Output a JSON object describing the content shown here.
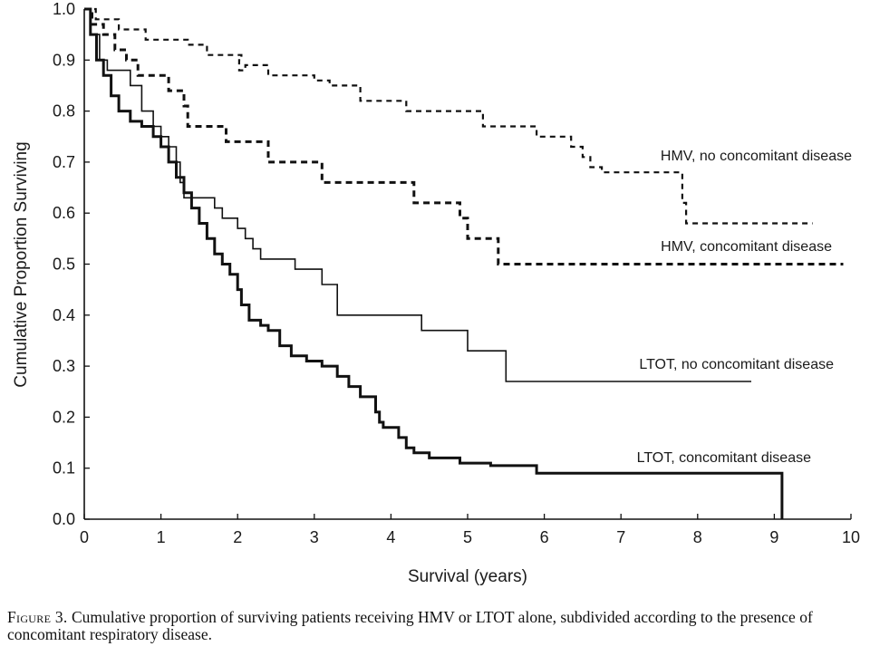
{
  "chart_data": {
    "type": "line",
    "step": true,
    "xlabel": "Survival (years)",
    "ylabel": "Cumulative Proportion Surviving",
    "xlim": [
      0,
      10
    ],
    "ylim": [
      0,
      1.0
    ],
    "x_ticks": [
      "0",
      "1",
      "2",
      "3",
      "4",
      "5",
      "6",
      "7",
      "8",
      "9",
      "10"
    ],
    "y_ticks": [
      "0.0",
      "0.1",
      "0.2",
      "0.3",
      "0.4",
      "0.5",
      "0.6",
      "0.7",
      "0.8",
      "0.9",
      "1.0"
    ],
    "grid": false,
    "series": [
      {
        "name": "HMV, no concomitant disease",
        "style": "dashed-thin",
        "points": [
          [
            0,
            1.0
          ],
          [
            0.15,
            0.98
          ],
          [
            0.45,
            0.96
          ],
          [
            0.8,
            0.94
          ],
          [
            1.35,
            0.93
          ],
          [
            1.6,
            0.91
          ],
          [
            2.0,
            0.91
          ],
          [
            2.05,
            0.9
          ],
          [
            2.02,
            0.88
          ],
          [
            2.1,
            0.89
          ],
          [
            2.4,
            0.87
          ],
          [
            3.0,
            0.86
          ],
          [
            3.2,
            0.85
          ],
          [
            3.6,
            0.82
          ],
          [
            4.1,
            0.82
          ],
          [
            4.2,
            0.8
          ],
          [
            5.0,
            0.8
          ],
          [
            5.2,
            0.77
          ],
          [
            5.7,
            0.77
          ],
          [
            5.9,
            0.75
          ],
          [
            6.2,
            0.75
          ],
          [
            6.35,
            0.73
          ],
          [
            6.5,
            0.71
          ],
          [
            6.6,
            0.69
          ],
          [
            6.75,
            0.68
          ],
          [
            7.8,
            0.68
          ],
          [
            7.8,
            0.62
          ],
          [
            7.85,
            0.58
          ],
          [
            9.5,
            0.58
          ]
        ]
      },
      {
        "name": "HMV, concomitant disease",
        "style": "dashed-thick",
        "points": [
          [
            0,
            1.0
          ],
          [
            0.1,
            0.97
          ],
          [
            0.25,
            0.95
          ],
          [
            0.4,
            0.92
          ],
          [
            0.55,
            0.9
          ],
          [
            0.7,
            0.87
          ],
          [
            0.9,
            0.87
          ],
          [
            1.1,
            0.84
          ],
          [
            1.3,
            0.81
          ],
          [
            1.35,
            0.77
          ],
          [
            1.6,
            0.77
          ],
          [
            1.85,
            0.74
          ],
          [
            2.4,
            0.7
          ],
          [
            2.9,
            0.7
          ],
          [
            3.1,
            0.66
          ],
          [
            4.0,
            0.66
          ],
          [
            4.3,
            0.62
          ],
          [
            4.8,
            0.62
          ],
          [
            4.9,
            0.59
          ],
          [
            5.0,
            0.55
          ],
          [
            5.3,
            0.55
          ],
          [
            5.4,
            0.5
          ],
          [
            9.9,
            0.5
          ]
        ]
      },
      {
        "name": "LTOT, no concomitant disease",
        "style": "solid-thin",
        "points": [
          [
            0,
            1.0
          ],
          [
            0.08,
            0.95
          ],
          [
            0.2,
            0.9
          ],
          [
            0.3,
            0.88
          ],
          [
            0.5,
            0.88
          ],
          [
            0.6,
            0.85
          ],
          [
            0.75,
            0.8
          ],
          [
            0.9,
            0.77
          ],
          [
            1.0,
            0.75
          ],
          [
            1.1,
            0.73
          ],
          [
            1.2,
            0.7
          ],
          [
            1.25,
            0.66
          ],
          [
            1.3,
            0.63
          ],
          [
            1.6,
            0.63
          ],
          [
            1.7,
            0.61
          ],
          [
            1.8,
            0.59
          ],
          [
            2.0,
            0.57
          ],
          [
            2.1,
            0.55
          ],
          [
            2.2,
            0.53
          ],
          [
            2.3,
            0.51
          ],
          [
            2.6,
            0.51
          ],
          [
            2.75,
            0.49
          ],
          [
            3.0,
            0.49
          ],
          [
            3.1,
            0.46
          ],
          [
            3.25,
            0.46
          ],
          [
            3.3,
            0.4
          ],
          [
            4.3,
            0.4
          ],
          [
            4.4,
            0.37
          ],
          [
            4.95,
            0.37
          ],
          [
            5.0,
            0.33
          ],
          [
            5.45,
            0.33
          ],
          [
            5.5,
            0.27
          ],
          [
            8.7,
            0.27
          ]
        ]
      },
      {
        "name": "LTOT, concomitant disease",
        "style": "solid-thick",
        "points": [
          [
            0,
            1.0
          ],
          [
            0.08,
            0.95
          ],
          [
            0.16,
            0.9
          ],
          [
            0.25,
            0.87
          ],
          [
            0.35,
            0.83
          ],
          [
            0.45,
            0.8
          ],
          [
            0.6,
            0.78
          ],
          [
            0.75,
            0.77
          ],
          [
            0.9,
            0.75
          ],
          [
            1.0,
            0.73
          ],
          [
            1.1,
            0.7
          ],
          [
            1.2,
            0.67
          ],
          [
            1.3,
            0.64
          ],
          [
            1.4,
            0.61
          ],
          [
            1.5,
            0.58
          ],
          [
            1.6,
            0.55
          ],
          [
            1.7,
            0.52
          ],
          [
            1.8,
            0.5
          ],
          [
            1.9,
            0.48
          ],
          [
            2.0,
            0.45
          ],
          [
            2.05,
            0.42
          ],
          [
            2.15,
            0.39
          ],
          [
            2.3,
            0.38
          ],
          [
            2.4,
            0.37
          ],
          [
            2.55,
            0.34
          ],
          [
            2.7,
            0.32
          ],
          [
            2.9,
            0.31
          ],
          [
            3.1,
            0.3
          ],
          [
            3.3,
            0.28
          ],
          [
            3.45,
            0.26
          ],
          [
            3.6,
            0.24
          ],
          [
            3.8,
            0.21
          ],
          [
            3.85,
            0.19
          ],
          [
            3.9,
            0.18
          ],
          [
            4.1,
            0.16
          ],
          [
            4.2,
            0.14
          ],
          [
            4.3,
            0.13
          ],
          [
            4.5,
            0.12
          ],
          [
            4.9,
            0.11
          ],
          [
            5.3,
            0.105
          ],
          [
            5.85,
            0.105
          ],
          [
            5.9,
            0.09
          ],
          [
            9.1,
            0.09
          ],
          [
            9.1,
            0.0
          ]
        ]
      }
    ]
  },
  "caption": {
    "figure_label": "Figure 3.",
    "text": " Cumulative proportion of surviving patients receiving HMV or LTOT alone, subdivided according to the presence of concomitant respiratory disease."
  }
}
